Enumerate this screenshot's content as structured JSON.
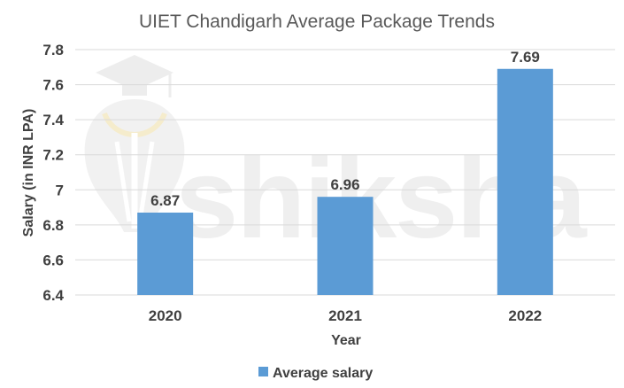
{
  "chart_data": {
    "type": "bar",
    "title": "UIET Chandigarh Average Package Trends",
    "xlabel": "Year",
    "ylabel": "Salary (in INR LPA)",
    "categories": [
      "2020",
      "2021",
      "2022"
    ],
    "series": [
      {
        "name": "Average salary",
        "values": [
          6.87,
          6.96,
          7.69
        ],
        "color": "#5b9bd5"
      }
    ],
    "ylim": [
      6.4,
      7.8
    ],
    "yticks": [
      "6.4",
      "6.6",
      "6.8",
      "7",
      "7.2",
      "7.4",
      "7.6",
      "7.8"
    ],
    "data_labels": [
      "6.87",
      "6.96",
      "7.69"
    ],
    "grid": true,
    "legend_position": "bottom"
  },
  "watermark": {
    "text": "shiksha",
    "icon": "graduation-cap-logo"
  }
}
